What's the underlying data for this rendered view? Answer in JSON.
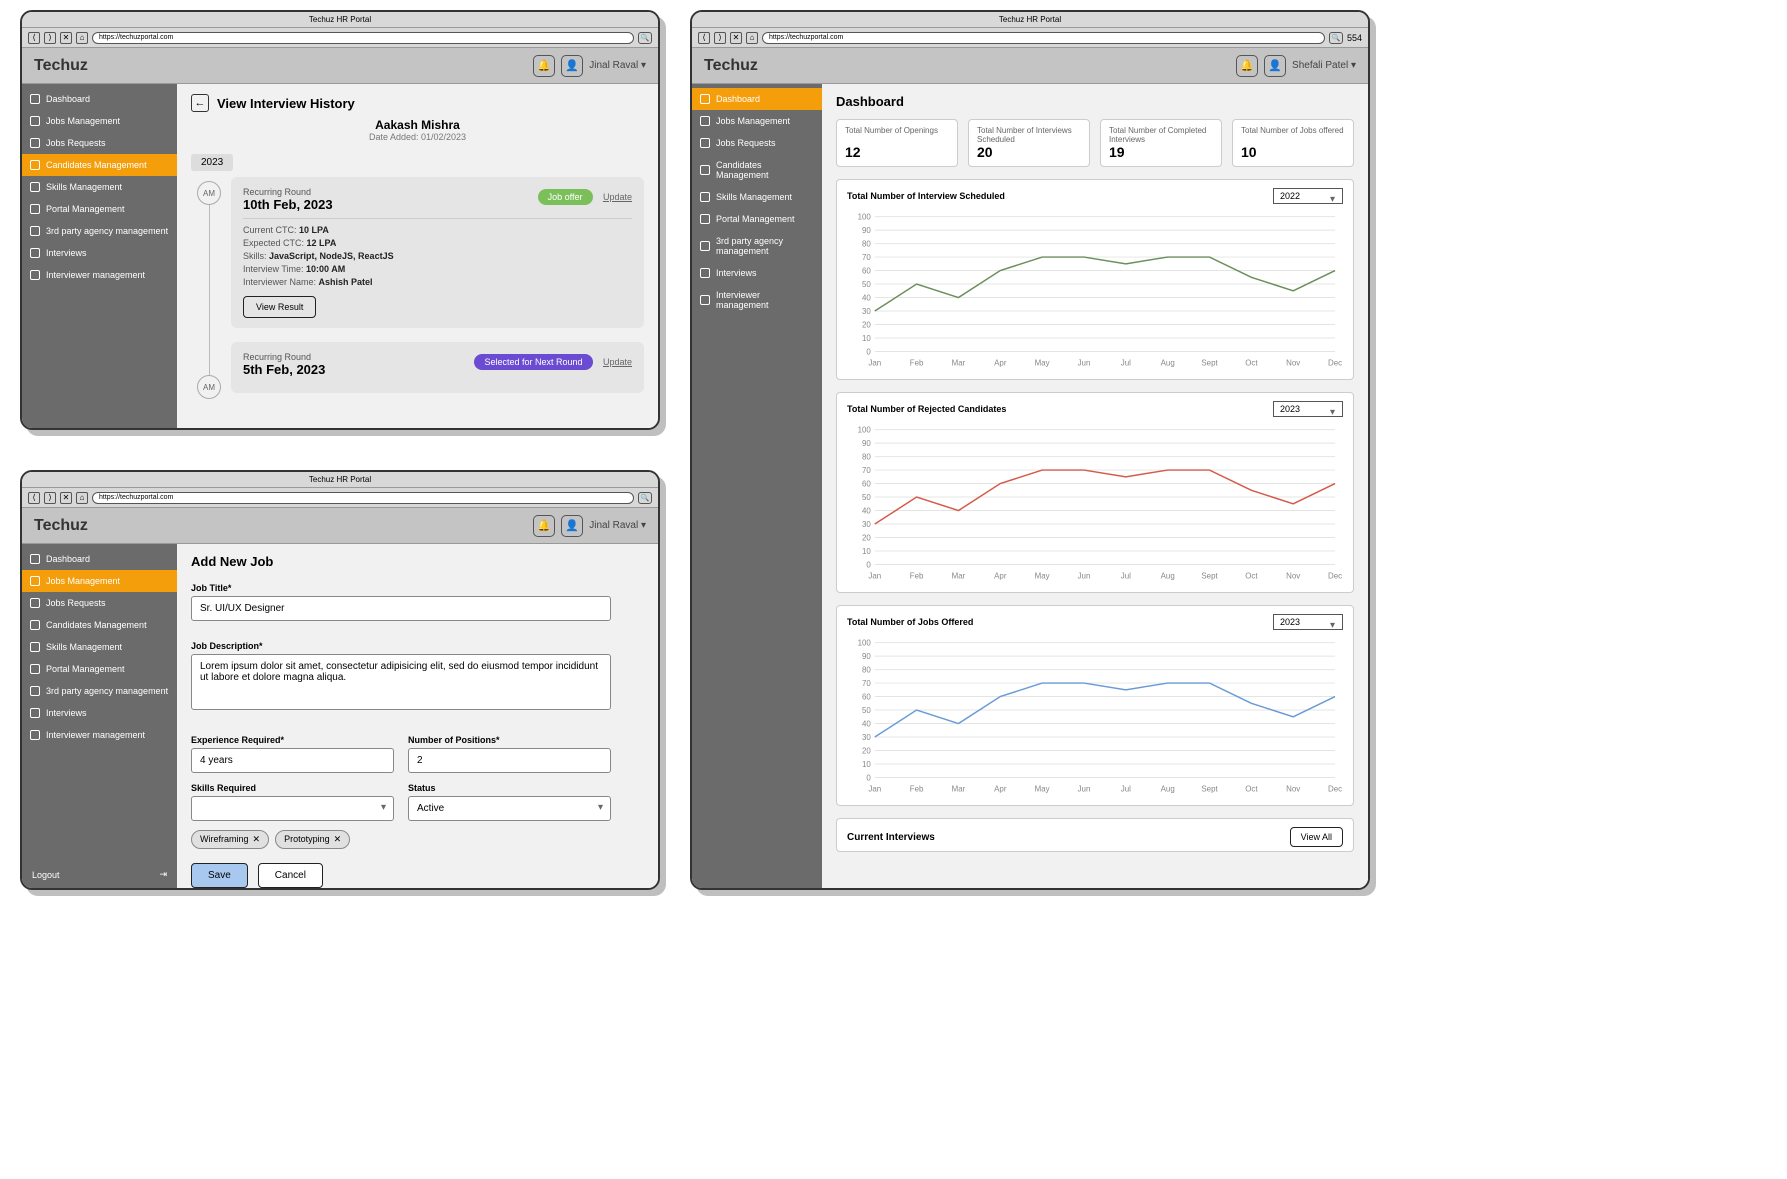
{
  "common": {
    "window_title": "Techuz HR Portal",
    "url": "https://techuzportal.com",
    "brand": "Techuz",
    "user_dropdown_suffix": " ▾",
    "sidebar_items": [
      "Dashboard",
      "Jobs Management",
      "Jobs Requests",
      "Candidates Management",
      "Skills Management",
      "Portal Management",
      "3rd party agency management",
      "Interviews",
      "Interviewer management"
    ],
    "logout": "Logout"
  },
  "win1": {
    "user": "Jinal Raval",
    "active_idx": 3,
    "title": "View Interview History",
    "candidate_name": "Aakash Mishra",
    "date_added_label": "Date Added: ",
    "date_added": "01/02/2023",
    "year_chip": "2023",
    "am_label": "AM",
    "update_link": "Update",
    "view_result": "View Result",
    "card1": {
      "round": "Recurring Round",
      "date": "10th Feb, 2023",
      "pill": "Job offer",
      "pill_bg": "#7bbf5a",
      "rows": [
        {
          "k": "Current CTC:",
          "v": "10 LPA"
        },
        {
          "k": "Expected CTC:",
          "v": "12 LPA"
        },
        {
          "k": "Skills:",
          "v": "JavaScript, NodeJS, ReactJS"
        },
        {
          "k": "Interview Time:",
          "v": "10:00 AM"
        },
        {
          "k": "Interviewer Name:",
          "v": "Ashish Patel"
        }
      ]
    },
    "card2": {
      "round": "Recurring Round",
      "date": "5th Feb, 2023",
      "pill": "Selected for Next Round",
      "pill_bg": "#6b4bd1"
    }
  },
  "win2": {
    "user": "Jinal Raval",
    "active_idx": 1,
    "title": "Add New Job",
    "labels": {
      "job_title": "Job Title*",
      "job_desc": "Job Description*",
      "exp": "Experience Required*",
      "positions": "Number of Positions*",
      "skills": "Skills Required",
      "status": "Status"
    },
    "values": {
      "job_title": "Sr. UI/UX Designer",
      "job_desc": "Lorem ipsum dolor sit amet, consectetur adipisicing elit, sed do eiusmod tempor incididunt ut labore et dolore magna aliqua.",
      "exp": "4 years",
      "positions": "2",
      "status": "Active"
    },
    "tags": [
      "Wireframing",
      "Prototyping"
    ],
    "save": "Save",
    "cancel": "Cancel"
  },
  "win3": {
    "user": "Shefali Patel",
    "active_idx": 0,
    "title": "Dashboard",
    "stats": [
      {
        "label": "Total Number of Openings",
        "value": "12"
      },
      {
        "label": "Total Number of Interviews Scheduled",
        "value": "20"
      },
      {
        "label": "Total Number of Completed Interviews",
        "value": "19"
      },
      {
        "label": "Total Number of Jobs offered",
        "value": "10"
      }
    ],
    "charts": [
      {
        "title": "Total Number of Interview Scheduled",
        "year": "2022",
        "color": "#6b8e5a"
      },
      {
        "title": "Total Number of Rejected Candidates",
        "year": "2023",
        "color": "#d45a4a"
      },
      {
        "title": "Total Number of Jobs Offered",
        "year": "2023",
        "color": "#6a9bd8"
      }
    ],
    "chart_common": {
      "months": [
        "Jan",
        "Feb",
        "Mar",
        "Apr",
        "May",
        "Jun",
        "Jul",
        "Aug",
        "Sep",
        "Oct",
        "Nov",
        "Dec"
      ],
      "months_display": [
        "Jan",
        "Feb",
        "Mar",
        "Apr",
        "May",
        "Jun",
        "Jul",
        "Aug",
        "Sept",
        "Oct",
        "Nov",
        "Dec"
      ],
      "ylim": [
        0,
        100
      ],
      "ytick_step": 10,
      "values": [
        30,
        50,
        40,
        60,
        70,
        70,
        65,
        70,
        70,
        55,
        45,
        60
      ],
      "grid_color": "#e4e4e4",
      "background": "#ffffff",
      "axis_fontsize": 8,
      "line_width": 1.5
    },
    "current_interviews": "Current Interviews",
    "view_all": "View All"
  }
}
